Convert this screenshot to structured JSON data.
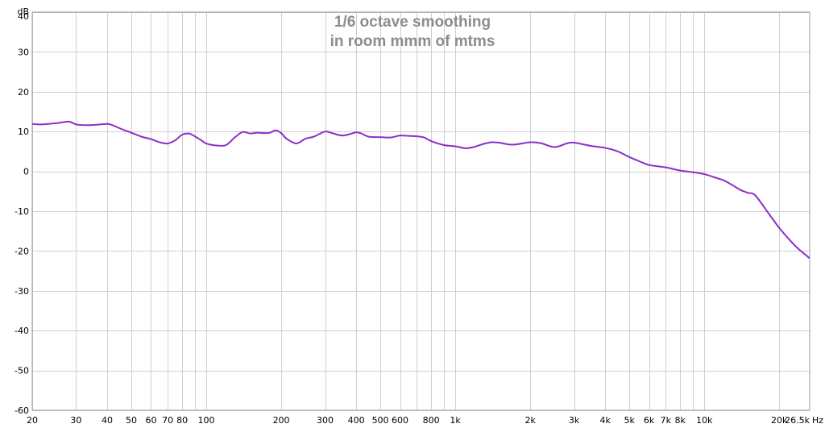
{
  "chart_data": {
    "type": "line",
    "title": "1/6 octave smoothing",
    "subtitle": "in room mmm of mtms",
    "y_unit": "dB",
    "x_unit": "Hz",
    "x_scale": "log",
    "xlim": [
      20,
      26500
    ],
    "ylim": [
      -60,
      40
    ],
    "grid": true,
    "y_ticks": [
      {
        "value": 40,
        "label": "40"
      },
      {
        "value": 30,
        "label": "30"
      },
      {
        "value": 20,
        "label": "20"
      },
      {
        "value": 10,
        "label": "10"
      },
      {
        "value": 0,
        "label": "0"
      },
      {
        "value": -10,
        "label": "-10"
      },
      {
        "value": -20,
        "label": "-20"
      },
      {
        "value": -30,
        "label": "-30"
      },
      {
        "value": -40,
        "label": "-40"
      },
      {
        "value": -50,
        "label": "-50"
      },
      {
        "value": -60,
        "label": "-60"
      }
    ],
    "x_ticks": [
      {
        "value": 20,
        "label": "20"
      },
      {
        "value": 30,
        "label": "30"
      },
      {
        "value": 40,
        "label": "40"
      },
      {
        "value": 50,
        "label": "50"
      },
      {
        "value": 60,
        "label": "60"
      },
      {
        "value": 70,
        "label": "70"
      },
      {
        "value": 80,
        "label": "80"
      },
      {
        "value": 100,
        "label": "100"
      },
      {
        "value": 200,
        "label": "200"
      },
      {
        "value": 300,
        "label": "300"
      },
      {
        "value": 400,
        "label": "400"
      },
      {
        "value": 500,
        "label": "500"
      },
      {
        "value": 600,
        "label": "600"
      },
      {
        "value": 800,
        "label": "800"
      },
      {
        "value": 1000,
        "label": "1k"
      },
      {
        "value": 2000,
        "label": "2k"
      },
      {
        "value": 3000,
        "label": "3k"
      },
      {
        "value": 4000,
        "label": "4k"
      },
      {
        "value": 5000,
        "label": "5k"
      },
      {
        "value": 6000,
        "label": "6k"
      },
      {
        "value": 7000,
        "label": "7k"
      },
      {
        "value": 8000,
        "label": "8k"
      },
      {
        "value": 10000,
        "label": "10k"
      },
      {
        "value": 20000,
        "label": "20k"
      },
      {
        "value": 26500,
        "label": "26.5k"
      }
    ],
    "x_minor_grid": [
      20,
      30,
      40,
      50,
      60,
      70,
      80,
      90,
      100,
      200,
      300,
      400,
      500,
      600,
      700,
      800,
      900,
      1000,
      2000,
      3000,
      4000,
      5000,
      6000,
      7000,
      8000,
      9000,
      10000,
      20000
    ],
    "series": [
      {
        "color": "#8b2fc9",
        "x": [
          20,
          22,
          25,
          28,
          30,
          33,
          36,
          40,
          42,
          45,
          50,
          55,
          60,
          65,
          70,
          75,
          80,
          85,
          90,
          95,
          100,
          110,
          120,
          130,
          140,
          150,
          160,
          170,
          180,
          190,
          200,
          210,
          230,
          250,
          270,
          300,
          320,
          350,
          380,
          400,
          420,
          450,
          500,
          550,
          600,
          650,
          700,
          750,
          800,
          900,
          1000,
          1100,
          1200,
          1300,
          1400,
          1500,
          1700,
          2000,
          2200,
          2500,
          2800,
          3000,
          3500,
          4000,
          4500,
          5000,
          5500,
          6000,
          7000,
          8000,
          9000,
          10000,
          11000,
          12000,
          13000,
          14000,
          15000,
          16000,
          18000,
          20000,
          22000,
          24000,
          26500
        ],
        "y": [
          11.9,
          11.8,
          12.1,
          12.5,
          11.8,
          11.6,
          11.7,
          11.9,
          11.6,
          10.8,
          9.7,
          8.7,
          8.1,
          7.3,
          7.0,
          7.8,
          9.2,
          9.5,
          8.8,
          7.9,
          7.0,
          6.5,
          6.6,
          8.5,
          9.9,
          9.5,
          9.7,
          9.6,
          9.7,
          10.3,
          9.6,
          8.2,
          7.0,
          8.2,
          8.7,
          10.0,
          9.6,
          9.0,
          9.4,
          9.8,
          9.5,
          8.7,
          8.6,
          8.5,
          9.0,
          8.9,
          8.8,
          8.5,
          7.6,
          6.6,
          6.3,
          5.8,
          6.2,
          6.9,
          7.3,
          7.2,
          6.7,
          7.3,
          7.1,
          6.1,
          7.0,
          7.2,
          6.4,
          5.9,
          5.0,
          3.6,
          2.5,
          1.6,
          1.0,
          0.2,
          -0.2,
          -0.7,
          -1.5,
          -2.3,
          -3.5,
          -4.7,
          -5.4,
          -6.0,
          -10.3,
          -14.2,
          -17.2,
          -19.6,
          -21.8
        ]
      }
    ]
  }
}
